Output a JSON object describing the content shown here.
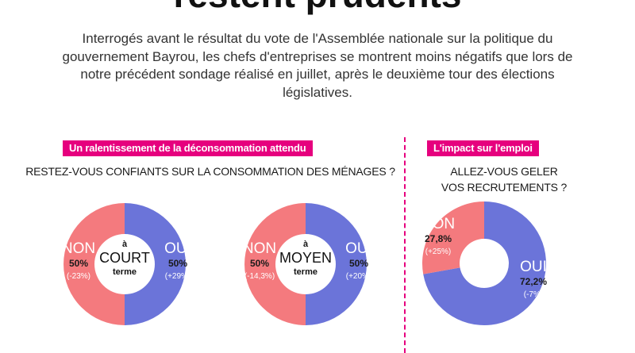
{
  "title": "restent prudents",
  "intro": "Interrogés avant le résultat du vote de l'Assemblée nationale sur la politique du gouvernement Bayrou, les chefs d'entreprises se montrent moins négatifs que lors de notre précédent sondage réalisé en juillet, après le deuxième tour des élections législatives.",
  "colors": {
    "oui": "#6b74d9",
    "non": "#f47a7e",
    "accent": "#e6007e"
  },
  "sections": {
    "left": {
      "tag": "Un ralentissement de la déconsommation attendu",
      "question": "RESTEZ-VOUS CONFIANTS SUR LA CONSOMMATION DES MÉNAGES ?"
    },
    "right": {
      "tag": "L'impact sur l'emploi",
      "question_line1": "ALLEZ-VOUS GELER",
      "question_line2": "VOS RECRUTEMENTS ?"
    }
  },
  "chart_data": [
    {
      "type": "pie",
      "center_label": [
        "à",
        "COURT",
        "terme"
      ],
      "slices": [
        {
          "name": "NON",
          "value": 50,
          "label": "50%",
          "change": "(-23%)"
        },
        {
          "name": "OUI",
          "value": 50,
          "label": "50%",
          "change": "(+29%)"
        }
      ]
    },
    {
      "type": "pie",
      "center_label": [
        "à",
        "MOYEN",
        "terme"
      ],
      "slices": [
        {
          "name": "NON",
          "value": 50,
          "label": "50%",
          "change": "(-14,3%)"
        },
        {
          "name": "OUI",
          "value": 50,
          "label": "50%",
          "change": "(+20%)"
        }
      ]
    },
    {
      "type": "pie",
      "center_label": [],
      "slices": [
        {
          "name": "NON",
          "value": 27.8,
          "label": "27,8%",
          "change": "(+25%)"
        },
        {
          "name": "OUI",
          "value": 72.2,
          "label": "72,2%",
          "change": "(-7%)"
        }
      ]
    }
  ]
}
